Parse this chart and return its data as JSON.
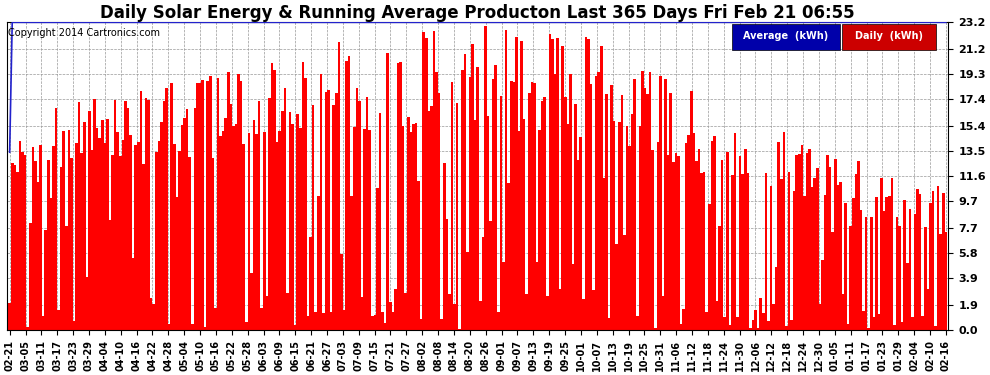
{
  "title": "Daily Solar Energy & Running Average Producton Last 365 Days Fri Feb 21 06:55",
  "copyright": "Copyright 2014 Cartronics.com",
  "yticks": [
    0.0,
    1.9,
    3.9,
    5.8,
    7.7,
    9.7,
    11.6,
    13.5,
    15.4,
    17.4,
    19.3,
    21.2,
    23.2
  ],
  "ymax": 23.2,
  "bar_color": "#FF0000",
  "avg_color": "#2222CC",
  "background_color": "#FFFFFF",
  "grid_color": "#999999",
  "legend_avg_bg": "#0000AA",
  "legend_daily_bg": "#CC0000",
  "title_fontsize": 12,
  "xtick_labels": [
    "02-21",
    "03-05",
    "03-11",
    "03-17",
    "03-23",
    "03-29",
    "04-04",
    "04-10",
    "04-16",
    "04-22",
    "04-28",
    "05-04",
    "05-10",
    "05-16",
    "05-22",
    "05-28",
    "06-03",
    "06-09",
    "06-15",
    "06-21",
    "06-27",
    "07-03",
    "07-09",
    "07-15",
    "07-21",
    "07-27",
    "08-02",
    "08-08",
    "08-14",
    "08-20",
    "08-26",
    "09-01",
    "09-07",
    "09-13",
    "09-19",
    "09-25",
    "10-01",
    "10-07",
    "10-13",
    "10-19",
    "10-25",
    "10-31",
    "11-06",
    "11-12",
    "11-18",
    "11-24",
    "11-30",
    "12-06",
    "12-12",
    "12-18",
    "12-24",
    "12-30",
    "01-05",
    "01-11",
    "01-17",
    "01-23",
    "01-29",
    "02-04",
    "02-10",
    "02-16"
  ],
  "n_days": 365,
  "seed": 7
}
